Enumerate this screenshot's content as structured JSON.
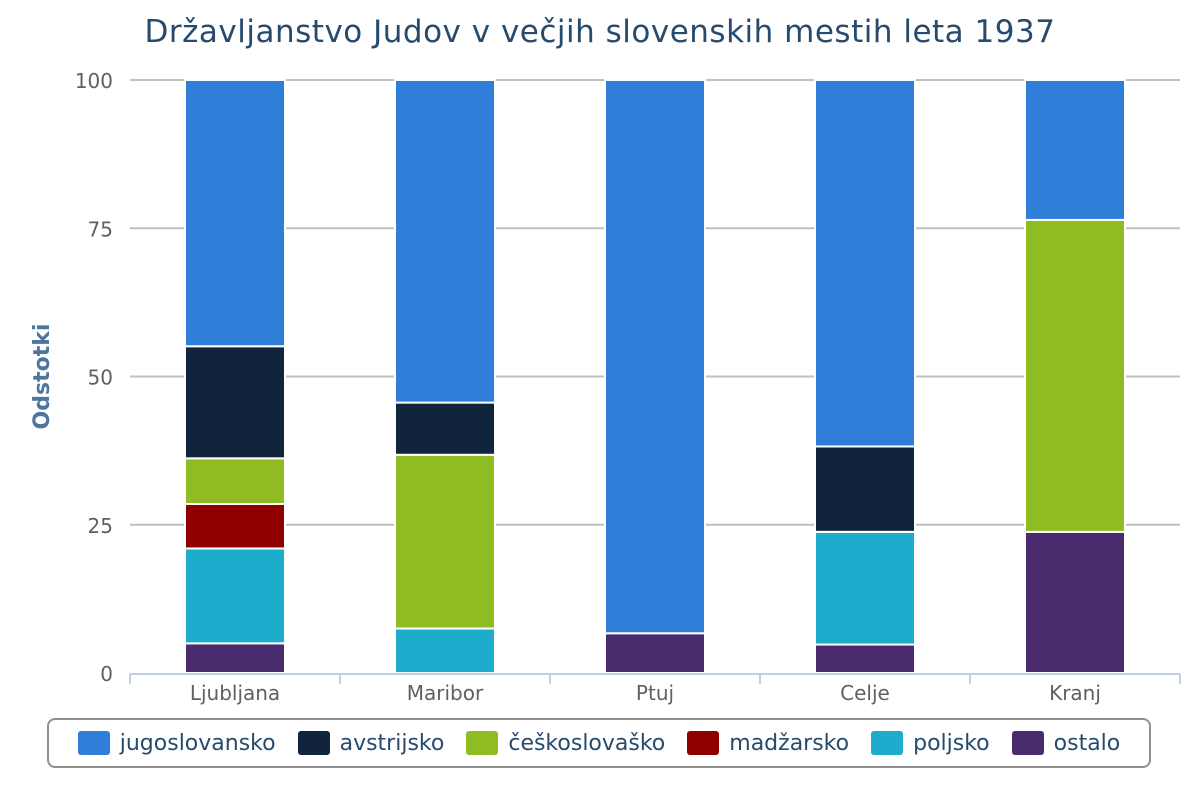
{
  "chart_data": {
    "type": "bar",
    "stacked": true,
    "title": "Državljanstvo Judov v večjih slovenskih mestih leta 1937",
    "xlabel": "",
    "ylabel": "Odstotki",
    "ylim": [
      0,
      100
    ],
    "yticks": [
      "0",
      "25",
      "50",
      "75",
      "100"
    ],
    "grid": true,
    "legend_position": "bottom",
    "categories": [
      "Ljubljana",
      "Maribor",
      "Ptuj",
      "Celje",
      "Kranj"
    ],
    "series": [
      {
        "name": "ostalo",
        "color": "#4a2c6e",
        "values": [
          5,
          0,
          6.7,
          4.8,
          23.8
        ]
      },
      {
        "name": "poljsko",
        "color": "#1eaccd",
        "values": [
          16,
          7.5,
          0,
          19,
          0
        ]
      },
      {
        "name": "madžarsko",
        "color": "#8f0000",
        "values": [
          7.5,
          0,
          0,
          0,
          0
        ]
      },
      {
        "name": "češkoslovaško",
        "color": "#8fbc22",
        "values": [
          7.7,
          29.3,
          0,
          0,
          52.6
        ]
      },
      {
        "name": "avstrijsko",
        "color": "#10243b",
        "values": [
          18.9,
          8.8,
          0,
          14.4,
          0
        ]
      },
      {
        "name": "jugoslovansko",
        "color": "#2f7ed8",
        "values": [
          44.9,
          54.4,
          93.3,
          61.8,
          23.6
        ]
      }
    ]
  }
}
